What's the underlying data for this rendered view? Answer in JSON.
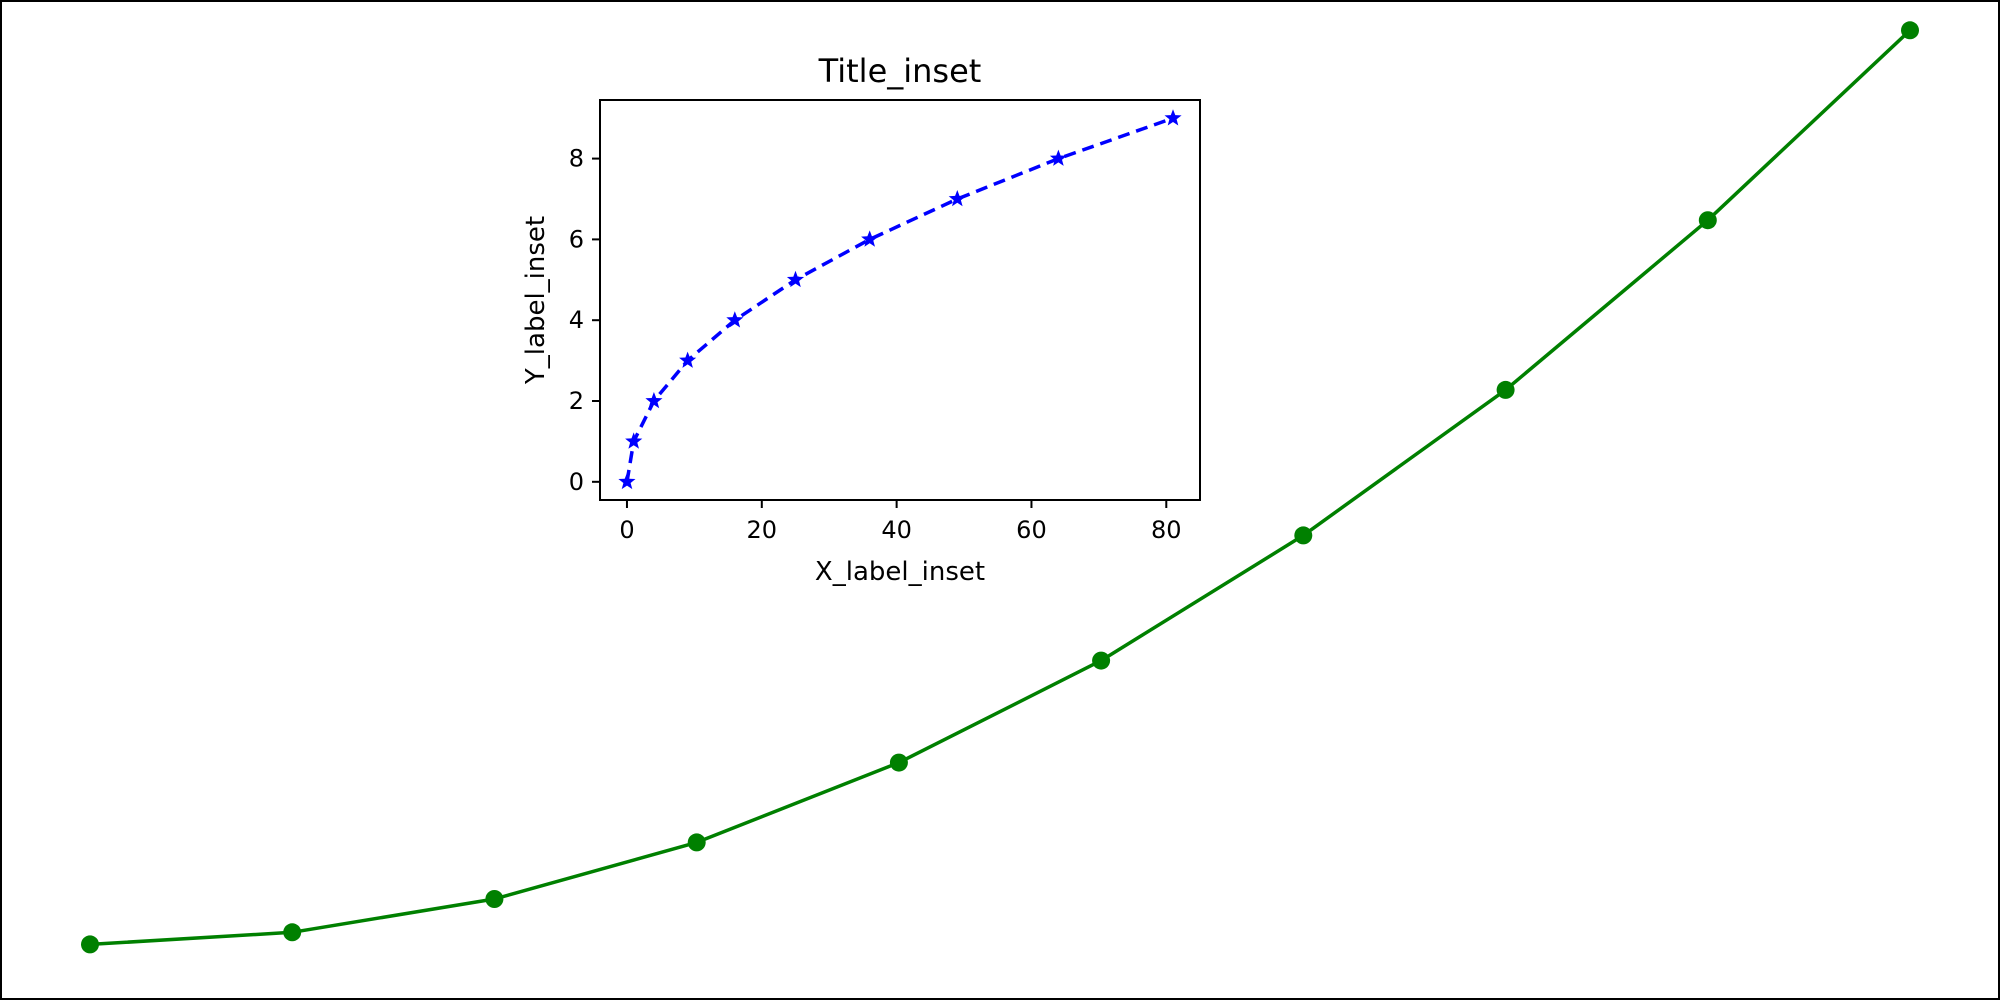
{
  "chart_data": [
    {
      "type": "line",
      "title": "",
      "xlabel": "",
      "ylabel": "",
      "axes_visible": false,
      "frame": "border",
      "x": [
        0,
        1,
        2,
        3,
        4,
        5,
        6,
        7,
        8,
        9
      ],
      "ylim": [
        -0.5,
        9.4
      ],
      "series": [
        {
          "values": [
            0.05,
            0.17,
            0.5,
            1.06,
            1.85,
            2.86,
            4.1,
            5.54,
            7.22,
            9.1
          ],
          "color": "#008000",
          "line_style": "solid",
          "marker": "circle"
        }
      ]
    },
    {
      "type": "line",
      "title": "Title_inset",
      "xlabel": "X_label_inset",
      "ylabel": "Y_label_inset",
      "xticks": [
        "0",
        "20",
        "40",
        "60",
        "80"
      ],
      "yticks": [
        "0",
        "2",
        "4",
        "6",
        "8"
      ],
      "xlim": [
        -4,
        85
      ],
      "ylim": [
        -0.45,
        9.45
      ],
      "series": [
        {
          "x": [
            0,
            1,
            4,
            9,
            16,
            25,
            36,
            49,
            64,
            81
          ],
          "values": [
            0,
            1,
            2,
            3,
            4,
            5,
            6,
            7,
            8,
            9
          ],
          "color": "#0000ff",
          "line_style": "dashed",
          "marker": "star"
        }
      ]
    }
  ]
}
